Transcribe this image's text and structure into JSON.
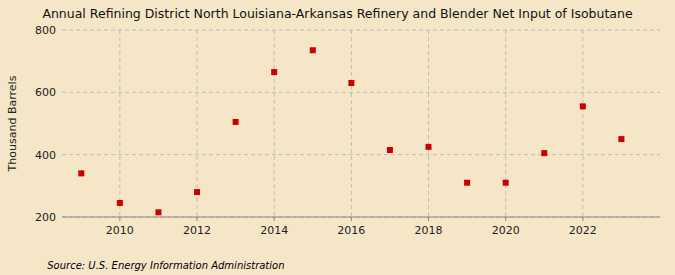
{
  "chart_data": {
    "type": "scatter",
    "title": "Annual Refining District North Louisiana-Arkansas Refinery and Blender Net Input of Isobutane",
    "y_label": "Thousand Barrels",
    "annotations": [
      "Source: U.S. Energy Information Administration"
    ],
    "x": [
      2009,
      2010,
      2011,
      2012,
      2013,
      2014,
      2015,
      2016,
      2017,
      2018,
      2019,
      2020,
      2021,
      2022,
      2023
    ],
    "values": [
      340,
      245,
      215,
      280,
      505,
      665,
      735,
      630,
      415,
      425,
      310,
      310,
      405,
      555,
      450
    ],
    "xlim": [
      2008.5,
      2024.0
    ],
    "xticks": [
      2010,
      2012,
      2014,
      2016,
      2018,
      2020,
      2022
    ],
    "ylim": [
      200,
      800
    ],
    "yticks": [
      200,
      400,
      600,
      800
    ],
    "color": "#cc0000",
    "marker": "square",
    "grid": true
  }
}
